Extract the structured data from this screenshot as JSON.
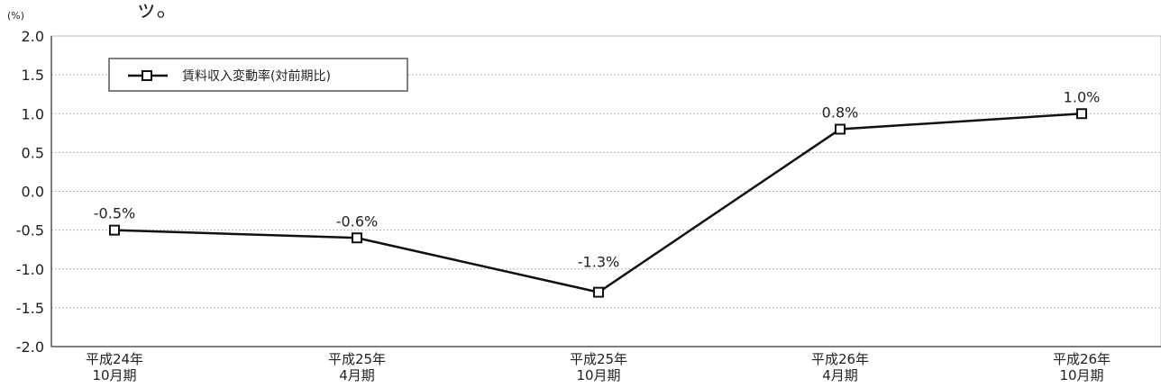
{
  "top_fragment": "ッ。",
  "chart_data": {
    "type": "line",
    "unit_label": "(%)",
    "categories": [
      [
        "平成24年",
        "10月期"
      ],
      [
        "平成25年",
        "4月期"
      ],
      [
        "平成25年",
        "10月期"
      ],
      [
        "平成26年",
        "4月期"
      ],
      [
        "平成26年",
        "10月期"
      ]
    ],
    "series": [
      {
        "name": "賃料収入変動率(対前期比)",
        "values": [
          -0.5,
          -0.6,
          -1.3,
          0.8,
          1.0
        ],
        "data_labels": [
          "-0.5%",
          "-0.6%",
          "-1.3%",
          "0.8%",
          "1.0%"
        ]
      }
    ],
    "ylim": [
      -2.0,
      2.0
    ],
    "yticks": [
      "2.0",
      "1.5",
      "1.0",
      "0.5",
      "0.0",
      "-0.5",
      "-1.0",
      "-1.5",
      "-2.0"
    ],
    "grid": true,
    "legend_position": "top-left",
    "colors": {
      "line": "#111111",
      "grid": "#b5b5b5"
    }
  }
}
